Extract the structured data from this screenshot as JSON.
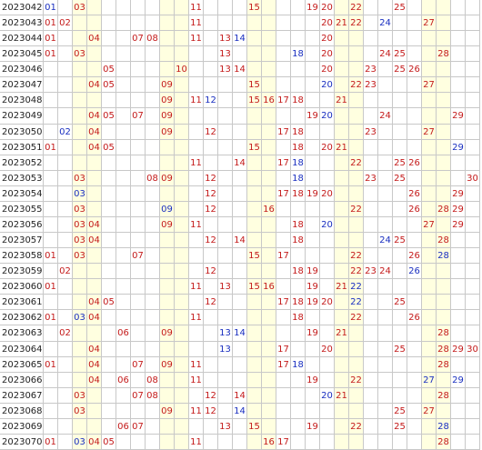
{
  "table": {
    "rows": [
      {
        "period": "2023042",
        "cells": [
          [
            "01",
            "#1a2fc0"
          ],
          [
            "03",
            "#c41a1a"
          ],
          [
            "11",
            "#c41a1a"
          ],
          [
            "15",
            "#c41a1a"
          ],
          [
            "19",
            "#c41a1a"
          ],
          [
            "20",
            "#c41a1a"
          ],
          [
            "22",
            "#c41a1a"
          ],
          [
            "25",
            "#c41a1a"
          ]
        ]
      },
      {
        "period": "2023043",
        "cells": [
          [
            "01",
            "#c41a1a"
          ],
          [
            "02",
            "#c41a1a"
          ],
          [
            "11",
            "#c41a1a"
          ],
          [
            "20",
            "#c41a1a"
          ],
          [
            "21",
            "#c41a1a"
          ],
          [
            "22",
            "#c41a1a"
          ],
          [
            "24",
            "#1a2fc0"
          ],
          [
            "27",
            "#c41a1a"
          ]
        ]
      },
      {
        "period": "2023044",
        "cells": [
          [
            "01",
            "#c41a1a"
          ],
          [
            "04",
            "#c41a1a"
          ],
          [
            "07",
            "#c41a1a"
          ],
          [
            "08",
            "#c41a1a"
          ],
          [
            "11",
            "#c41a1a"
          ],
          [
            "13",
            "#c41a1a"
          ],
          [
            "14",
            "#1a2fc0"
          ],
          [
            "20",
            "#c41a1a"
          ]
        ]
      },
      {
        "period": "2023045",
        "cells": [
          [
            "01",
            "#c41a1a"
          ],
          [
            "03",
            "#c41a1a"
          ],
          [
            "13",
            "#c41a1a"
          ],
          [
            "18",
            "#1a2fc0"
          ],
          [
            "20",
            "#c41a1a"
          ],
          [
            "24",
            "#c41a1a"
          ],
          [
            "25",
            "#c41a1a"
          ],
          [
            "28",
            "#c41a1a"
          ]
        ]
      },
      {
        "period": "2023046",
        "cells": [
          [
            "05",
            "#c41a1a"
          ],
          [
            "10",
            "#c41a1a"
          ],
          [
            "13",
            "#c41a1a"
          ],
          [
            "14",
            "#c41a1a"
          ],
          [
            "20",
            "#c41a1a"
          ],
          [
            "23",
            "#c41a1a"
          ],
          [
            "25",
            "#c41a1a"
          ],
          [
            "26",
            "#c41a1a"
          ]
        ]
      },
      {
        "period": "2023047",
        "cells": [
          [
            "04",
            "#c41a1a"
          ],
          [
            "05",
            "#c41a1a"
          ],
          [
            "09",
            "#c41a1a"
          ],
          [
            "15",
            "#c41a1a"
          ],
          [
            "20",
            "#1a2fc0"
          ],
          [
            "22",
            "#c41a1a"
          ],
          [
            "23",
            "#c41a1a"
          ],
          [
            "27",
            "#c41a1a"
          ]
        ]
      },
      {
        "period": "2023048",
        "cells": [
          [
            "09",
            "#c41a1a"
          ],
          [
            "11",
            "#c41a1a"
          ],
          [
            "12",
            "#1a2fc0"
          ],
          [
            "15",
            "#c41a1a"
          ],
          [
            "16",
            "#c41a1a"
          ],
          [
            "17",
            "#c41a1a"
          ],
          [
            "18",
            "#c41a1a"
          ],
          [
            "21",
            "#c41a1a"
          ]
        ]
      },
      {
        "period": "2023049",
        "cells": [
          [
            "04",
            "#c41a1a"
          ],
          [
            "05",
            "#c41a1a"
          ],
          [
            "07",
            "#c41a1a"
          ],
          [
            "09",
            "#c41a1a"
          ],
          [
            "19",
            "#c41a1a"
          ],
          [
            "20",
            "#1a2fc0"
          ],
          [
            "24",
            "#c41a1a"
          ],
          [
            "29",
            "#c41a1a"
          ]
        ]
      },
      {
        "period": "2023050",
        "cells": [
          [
            "02",
            "#1a2fc0"
          ],
          [
            "04",
            "#c41a1a"
          ],
          [
            "09",
            "#c41a1a"
          ],
          [
            "12",
            "#c41a1a"
          ],
          [
            "17",
            "#c41a1a"
          ],
          [
            "18",
            "#c41a1a"
          ],
          [
            "23",
            "#c41a1a"
          ],
          [
            "27",
            "#c41a1a"
          ]
        ]
      },
      {
        "period": "2023051",
        "cells": [
          [
            "01",
            "#c41a1a"
          ],
          [
            "04",
            "#c41a1a"
          ],
          [
            "05",
            "#c41a1a"
          ],
          [
            "15",
            "#c41a1a"
          ],
          [
            "18",
            "#c41a1a"
          ],
          [
            "20",
            "#c41a1a"
          ],
          [
            "21",
            "#c41a1a"
          ],
          [
            "29",
            "#1a2fc0"
          ]
        ]
      },
      {
        "period": "2023052",
        "cells": [
          [
            "11",
            "#c41a1a"
          ],
          [
            "14",
            "#c41a1a"
          ],
          [
            "17",
            "#c41a1a"
          ],
          [
            "18",
            "#1a2fc0"
          ],
          [
            "22",
            "#c41a1a"
          ],
          [
            "25",
            "#c41a1a"
          ],
          [
            "26",
            "#c41a1a"
          ]
        ]
      },
      {
        "period": "2023053",
        "cells": [
          [
            "03",
            "#c41a1a"
          ],
          [
            "08",
            "#c41a1a"
          ],
          [
            "09",
            "#c41a1a"
          ],
          [
            "12",
            "#c41a1a"
          ],
          [
            "18",
            "#1a2fc0"
          ],
          [
            "23",
            "#c41a1a"
          ],
          [
            "25",
            "#c41a1a"
          ],
          [
            "30",
            "#c41a1a"
          ]
        ]
      },
      {
        "period": "2023054",
        "cells": [
          [
            "03",
            "#1a2fc0"
          ],
          [
            "12",
            "#c41a1a"
          ],
          [
            "17",
            "#c41a1a"
          ],
          [
            "18",
            "#c41a1a"
          ],
          [
            "19",
            "#c41a1a"
          ],
          [
            "20",
            "#c41a1a"
          ],
          [
            "26",
            "#c41a1a"
          ],
          [
            "29",
            "#c41a1a"
          ]
        ]
      },
      {
        "period": "2023055",
        "cells": [
          [
            "03",
            "#c41a1a"
          ],
          [
            "09",
            "#1a2fc0"
          ],
          [
            "12",
            "#c41a1a"
          ],
          [
            "16",
            "#c41a1a"
          ],
          [
            "22",
            "#c41a1a"
          ],
          [
            "26",
            "#c41a1a"
          ],
          [
            "28",
            "#c41a1a"
          ],
          [
            "29",
            "#c41a1a"
          ]
        ]
      },
      {
        "period": "2023056",
        "cells": [
          [
            "03",
            "#c41a1a"
          ],
          [
            "04",
            "#c41a1a"
          ],
          [
            "09",
            "#c41a1a"
          ],
          [
            "11",
            "#c41a1a"
          ],
          [
            "18",
            "#c41a1a"
          ],
          [
            "20",
            "#1a2fc0"
          ],
          [
            "27",
            "#c41a1a"
          ],
          [
            "29",
            "#c41a1a"
          ]
        ]
      },
      {
        "period": "2023057",
        "cells": [
          [
            "03",
            "#c41a1a"
          ],
          [
            "04",
            "#c41a1a"
          ],
          [
            "12",
            "#c41a1a"
          ],
          [
            "14",
            "#c41a1a"
          ],
          [
            "18",
            "#c41a1a"
          ],
          [
            "24",
            "#1a2fc0"
          ],
          [
            "25",
            "#c41a1a"
          ],
          [
            "28",
            "#c41a1a"
          ]
        ]
      },
      {
        "period": "2023058",
        "cells": [
          [
            "01",
            "#c41a1a"
          ],
          [
            "03",
            "#c41a1a"
          ],
          [
            "07",
            "#c41a1a"
          ],
          [
            "15",
            "#c41a1a"
          ],
          [
            "17",
            "#c41a1a"
          ],
          [
            "22",
            "#c41a1a"
          ],
          [
            "26",
            "#c41a1a"
          ],
          [
            "28",
            "#1a2fc0"
          ]
        ]
      },
      {
        "period": "2023059",
        "cells": [
          [
            "02",
            "#c41a1a"
          ],
          [
            "12",
            "#c41a1a"
          ],
          [
            "18",
            "#c41a1a"
          ],
          [
            "19",
            "#c41a1a"
          ],
          [
            "22",
            "#c41a1a"
          ],
          [
            "23",
            "#c41a1a"
          ],
          [
            "24",
            "#c41a1a"
          ],
          [
            "26",
            "#1a2fc0"
          ]
        ]
      },
      {
        "period": "2023060",
        "cells": [
          [
            "01",
            "#c41a1a"
          ],
          [
            "11",
            "#c41a1a"
          ],
          [
            "13",
            "#c41a1a"
          ],
          [
            "15",
            "#c41a1a"
          ],
          [
            "16",
            "#c41a1a"
          ],
          [
            "19",
            "#c41a1a"
          ],
          [
            "21",
            "#c41a1a"
          ],
          [
            "22",
            "#1a2fc0"
          ]
        ]
      },
      {
        "period": "2023061",
        "cells": [
          [
            "04",
            "#c41a1a"
          ],
          [
            "05",
            "#c41a1a"
          ],
          [
            "12",
            "#c41a1a"
          ],
          [
            "17",
            "#c41a1a"
          ],
          [
            "18",
            "#c41a1a"
          ],
          [
            "19",
            "#c41a1a"
          ],
          [
            "20",
            "#c41a1a"
          ],
          [
            "22",
            "#1a2fc0"
          ],
          [
            "25",
            "#c41a1a"
          ]
        ]
      },
      {
        "period": "2023062",
        "cells": [
          [
            "01",
            "#c41a1a"
          ],
          [
            "03",
            "#1a2fc0"
          ],
          [
            "04",
            "#c41a1a"
          ],
          [
            "11",
            "#c41a1a"
          ],
          [
            "18",
            "#c41a1a"
          ],
          [
            "22",
            "#c41a1a"
          ],
          [
            "26",
            "#c41a1a"
          ]
        ]
      },
      {
        "period": "2023063",
        "cells": [
          [
            "02",
            "#c41a1a"
          ],
          [
            "06",
            "#c41a1a"
          ],
          [
            "09",
            "#c41a1a"
          ],
          [
            "13",
            "#1a2fc0"
          ],
          [
            "14",
            "#1a2fc0"
          ],
          [
            "19",
            "#c41a1a"
          ],
          [
            "21",
            "#c41a1a"
          ],
          [
            "28",
            "#c41a1a"
          ]
        ]
      },
      {
        "period": "2023064",
        "cells": [
          [
            "04",
            "#c41a1a"
          ],
          [
            "13",
            "#1a2fc0"
          ],
          [
            "17",
            "#c41a1a"
          ],
          [
            "20",
            "#c41a1a"
          ],
          [
            "25",
            "#c41a1a"
          ],
          [
            "28",
            "#c41a1a"
          ],
          [
            "29",
            "#c41a1a"
          ],
          [
            "30",
            "#c41a1a"
          ]
        ]
      },
      {
        "period": "2023065",
        "cells": [
          [
            "01",
            "#c41a1a"
          ],
          [
            "04",
            "#c41a1a"
          ],
          [
            "07",
            "#c41a1a"
          ],
          [
            "09",
            "#c41a1a"
          ],
          [
            "11",
            "#c41a1a"
          ],
          [
            "17",
            "#c41a1a"
          ],
          [
            "18",
            "#1a2fc0"
          ],
          [
            "28",
            "#c41a1a"
          ]
        ]
      },
      {
        "period": "2023066",
        "cells": [
          [
            "04",
            "#c41a1a"
          ],
          [
            "06",
            "#c41a1a"
          ],
          [
            "08",
            "#c41a1a"
          ],
          [
            "11",
            "#c41a1a"
          ],
          [
            "19",
            "#c41a1a"
          ],
          [
            "22",
            "#c41a1a"
          ],
          [
            "27",
            "#1a2fc0"
          ],
          [
            "29",
            "#1a2fc0"
          ]
        ]
      },
      {
        "period": "2023067",
        "cells": [
          [
            "03",
            "#c41a1a"
          ],
          [
            "07",
            "#c41a1a"
          ],
          [
            "08",
            "#c41a1a"
          ],
          [
            "12",
            "#c41a1a"
          ],
          [
            "14",
            "#c41a1a"
          ],
          [
            "20",
            "#1a2fc0"
          ],
          [
            "21",
            "#c41a1a"
          ],
          [
            "28",
            "#c41a1a"
          ]
        ]
      },
      {
        "period": "2023068",
        "cells": [
          [
            "03",
            "#c41a1a"
          ],
          [
            "09",
            "#c41a1a"
          ],
          [
            "11",
            "#c41a1a"
          ],
          [
            "12",
            "#c41a1a"
          ],
          [
            "14",
            "#1a2fc0"
          ],
          [
            "25",
            "#c41a1a"
          ],
          [
            "27",
            "#c41a1a"
          ]
        ]
      },
      {
        "period": "2023069",
        "cells": [
          [
            "06",
            "#c41a1a"
          ],
          [
            "07",
            "#c41a1a"
          ],
          [
            "13",
            "#c41a1a"
          ],
          [
            "15",
            "#c41a1a"
          ],
          [
            "19",
            "#c41a1a"
          ],
          [
            "22",
            "#c41a1a"
          ],
          [
            "25",
            "#c41a1a"
          ],
          [
            "28",
            "#1a2fc0"
          ]
        ]
      },
      {
        "period": "2023070",
        "cells": [
          [
            "01",
            "#c41a1a"
          ],
          [
            "03",
            "#1a2fc0"
          ],
          [
            "04",
            "#c41a1a"
          ],
          [
            "05",
            "#c41a1a"
          ],
          [
            "11",
            "#c41a1a"
          ],
          [
            "16",
            "#c41a1a"
          ],
          [
            "17",
            "#c41a1a"
          ],
          [
            "28",
            "#c41a1a"
          ]
        ]
      }
    ]
  }
}
